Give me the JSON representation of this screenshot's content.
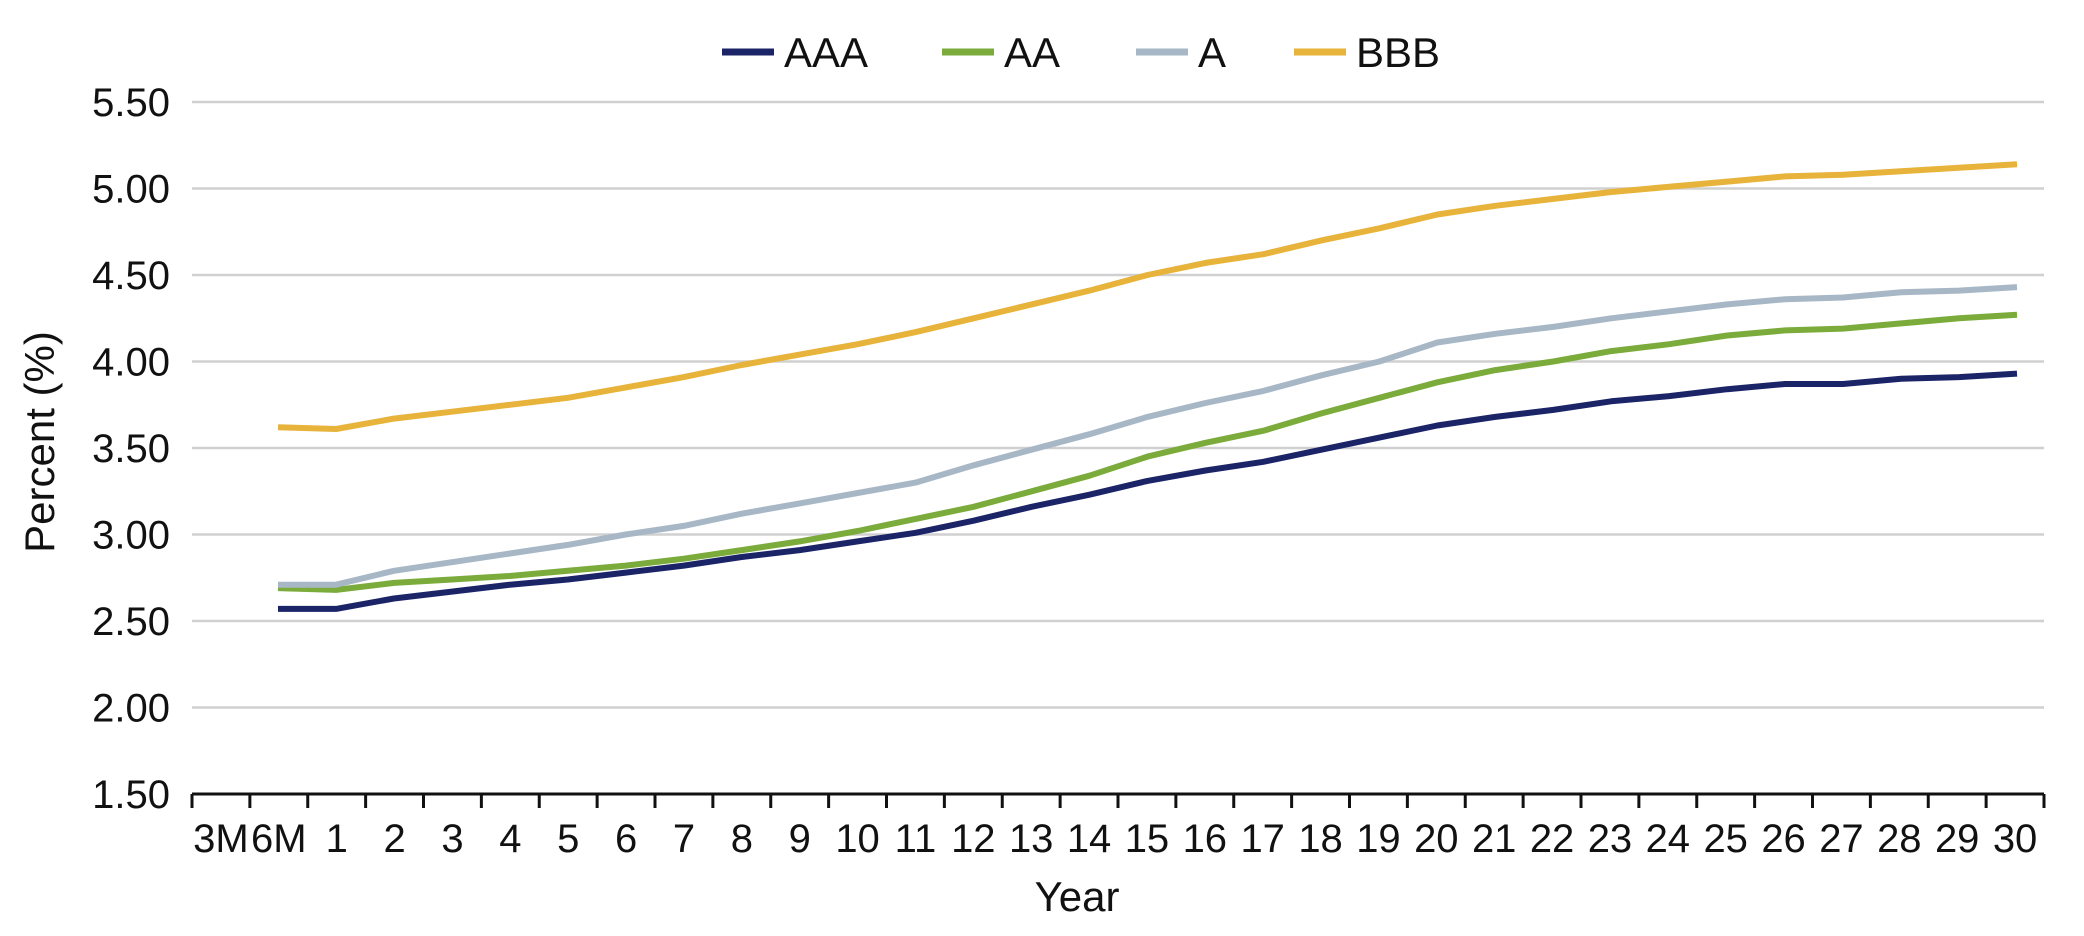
{
  "chart_data": {
    "type": "line",
    "title": "",
    "xlabel": "Year",
    "ylabel": "Percent (%)",
    "ylim": [
      1.5,
      5.5
    ],
    "yticks": [
      "1.50",
      "2.00",
      "2.50",
      "3.00",
      "3.50",
      "4.00",
      "4.50",
      "5.00",
      "5.50"
    ],
    "grid": "horizontal",
    "legend": "top-center",
    "categories": [
      "3M",
      "6M",
      "1",
      "2",
      "3",
      "4",
      "5",
      "6",
      "7",
      "8",
      "9",
      "10",
      "11",
      "12",
      "13",
      "14",
      "15",
      "16",
      "17",
      "18",
      "19",
      "20",
      "21",
      "22",
      "23",
      "24",
      "25",
      "26",
      "27",
      "28",
      "29",
      "30"
    ],
    "series": [
      {
        "name": "AAA",
        "color": "#1b2467",
        "values": [
          2.57,
          2.57,
          2.57,
          2.63,
          2.67,
          2.71,
          2.74,
          2.78,
          2.82,
          2.87,
          2.91,
          2.96,
          3.01,
          3.08,
          3.16,
          3.23,
          3.31,
          3.37,
          3.42,
          3.49,
          3.56,
          3.63,
          3.68,
          3.72,
          3.77,
          3.8,
          3.84,
          3.87,
          3.87,
          3.9,
          3.91,
          3.93
        ]
      },
      {
        "name": "AA",
        "color": "#7aab3b",
        "values": [
          2.69,
          2.69,
          2.68,
          2.72,
          2.74,
          2.76,
          2.79,
          2.82,
          2.86,
          2.91,
          2.96,
          3.02,
          3.09,
          3.16,
          3.25,
          3.34,
          3.45,
          3.53,
          3.6,
          3.7,
          3.79,
          3.88,
          3.95,
          4.0,
          4.06,
          4.1,
          4.15,
          4.18,
          4.19,
          4.22,
          4.25,
          4.27
        ]
      },
      {
        "name": "A",
        "color": "#a7b7c6",
        "values": [
          2.71,
          2.71,
          2.71,
          2.79,
          2.84,
          2.89,
          2.94,
          3.0,
          3.05,
          3.12,
          3.18,
          3.24,
          3.3,
          3.4,
          3.49,
          3.58,
          3.68,
          3.76,
          3.83,
          3.92,
          4.0,
          4.11,
          4.16,
          4.2,
          4.25,
          4.29,
          4.33,
          4.36,
          4.37,
          4.4,
          4.41,
          4.43
        ]
      },
      {
        "name": "BBB",
        "color": "#e7b33a",
        "values": [
          3.62,
          3.62,
          3.61,
          3.67,
          3.71,
          3.75,
          3.79,
          3.85,
          3.91,
          3.98,
          4.04,
          4.1,
          4.17,
          4.25,
          4.33,
          4.41,
          4.5,
          4.57,
          4.62,
          4.7,
          4.77,
          4.85,
          4.9,
          4.94,
          4.98,
          5.01,
          5.04,
          5.07,
          5.08,
          5.1,
          5.12,
          5.14
        ]
      }
    ]
  }
}
